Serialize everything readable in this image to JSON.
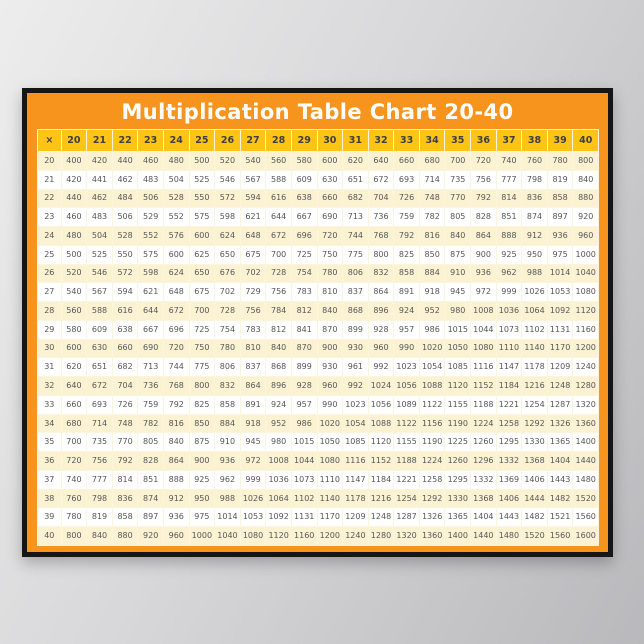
{
  "chart_data": {
    "type": "table",
    "title": "Multiplication Table Chart 20-40",
    "corner_label": "×",
    "columns": [
      20,
      21,
      22,
      23,
      24,
      25,
      26,
      27,
      28,
      29,
      30,
      31,
      32,
      33,
      34,
      35,
      36,
      37,
      38,
      39,
      40
    ],
    "rows": [
      {
        "label": 20,
        "values": [
          400,
          420,
          440,
          460,
          480,
          500,
          520,
          540,
          560,
          580,
          600,
          620,
          640,
          660,
          680,
          700,
          720,
          740,
          760,
          780,
          800
        ]
      },
      {
        "label": 21,
        "values": [
          420,
          441,
          462,
          483,
          504,
          525,
          546,
          567,
          588,
          609,
          630,
          651,
          672,
          693,
          714,
          735,
          756,
          777,
          798,
          819,
          840
        ]
      },
      {
        "label": 22,
        "values": [
          440,
          462,
          484,
          506,
          528,
          550,
          572,
          594,
          616,
          638,
          660,
          682,
          704,
          726,
          748,
          770,
          792,
          814,
          836,
          858,
          880
        ]
      },
      {
        "label": 23,
        "values": [
          460,
          483,
          506,
          529,
          552,
          575,
          598,
          621,
          644,
          667,
          690,
          713,
          736,
          759,
          782,
          805,
          828,
          851,
          874,
          897,
          920
        ]
      },
      {
        "label": 24,
        "values": [
          480,
          504,
          528,
          552,
          576,
          600,
          624,
          648,
          672,
          696,
          720,
          744,
          768,
          792,
          816,
          840,
          864,
          888,
          912,
          936,
          960
        ]
      },
      {
        "label": 25,
        "values": [
          500,
          525,
          550,
          575,
          600,
          625,
          650,
          675,
          700,
          725,
          750,
          775,
          800,
          825,
          850,
          875,
          900,
          925,
          950,
          975,
          1000
        ]
      },
      {
        "label": 26,
        "values": [
          520,
          546,
          572,
          598,
          624,
          650,
          676,
          702,
          728,
          754,
          780,
          806,
          832,
          858,
          884,
          910,
          936,
          962,
          988,
          1014,
          1040
        ]
      },
      {
        "label": 27,
        "values": [
          540,
          567,
          594,
          621,
          648,
          675,
          702,
          729,
          756,
          783,
          810,
          837,
          864,
          891,
          918,
          945,
          972,
          999,
          1026,
          1053,
          1080
        ]
      },
      {
        "label": 28,
        "values": [
          560,
          588,
          616,
          644,
          672,
          700,
          728,
          756,
          784,
          812,
          840,
          868,
          896,
          924,
          952,
          980,
          1008,
          1036,
          1064,
          1092,
          1120
        ]
      },
      {
        "label": 29,
        "values": [
          580,
          609,
          638,
          667,
          696,
          725,
          754,
          783,
          812,
          841,
          870,
          899,
          928,
          957,
          986,
          1015,
          1044,
          1073,
          1102,
          1131,
          1160
        ]
      },
      {
        "label": 30,
        "values": [
          600,
          630,
          660,
          690,
          720,
          750,
          780,
          810,
          840,
          870,
          900,
          930,
          960,
          990,
          1020,
          1050,
          1080,
          1110,
          1140,
          1170,
          1200
        ]
      },
      {
        "label": 31,
        "values": [
          620,
          651,
          682,
          713,
          744,
          775,
          806,
          837,
          868,
          899,
          930,
          961,
          992,
          1023,
          1054,
          1085,
          1116,
          1147,
          1178,
          1209,
          1240
        ]
      },
      {
        "label": 32,
        "values": [
          640,
          672,
          704,
          736,
          768,
          800,
          832,
          864,
          896,
          928,
          960,
          992,
          1024,
          1056,
          1088,
          1120,
          1152,
          1184,
          1216,
          1248,
          1280
        ]
      },
      {
        "label": 33,
        "values": [
          660,
          693,
          726,
          759,
          792,
          825,
          858,
          891,
          924,
          957,
          990,
          1023,
          1056,
          1089,
          1122,
          1155,
          1188,
          1221,
          1254,
          1287,
          1320
        ]
      },
      {
        "label": 34,
        "values": [
          680,
          714,
          748,
          782,
          816,
          850,
          884,
          918,
          952,
          986,
          1020,
          1054,
          1088,
          1122,
          1156,
          1190,
          1224,
          1258,
          1292,
          1326,
          1360
        ]
      },
      {
        "label": 35,
        "values": [
          700,
          735,
          770,
          805,
          840,
          875,
          910,
          945,
          980,
          1015,
          1050,
          1085,
          1120,
          1155,
          1190,
          1225,
          1260,
          1295,
          1330,
          1365,
          1400
        ]
      },
      {
        "label": 36,
        "values": [
          720,
          756,
          792,
          828,
          864,
          900,
          936,
          972,
          1008,
          1044,
          1080,
          1116,
          1152,
          1188,
          1224,
          1260,
          1296,
          1332,
          1368,
          1404,
          1440
        ]
      },
      {
        "label": 37,
        "values": [
          740,
          777,
          814,
          851,
          888,
          925,
          962,
          999,
          1036,
          1073,
          1110,
          1147,
          1184,
          1221,
          1258,
          1295,
          1332,
          1369,
          1406,
          1443,
          1480
        ]
      },
      {
        "label": 38,
        "values": [
          760,
          798,
          836,
          874,
          912,
          950,
          988,
          1026,
          1064,
          1102,
          1140,
          1178,
          1216,
          1254,
          1292,
          1330,
          1368,
          1406,
          1444,
          1482,
          1520
        ]
      },
      {
        "label": 39,
        "values": [
          780,
          819,
          858,
          897,
          936,
          975,
          1014,
          1053,
          1092,
          1131,
          1170,
          1209,
          1248,
          1287,
          1326,
          1365,
          1404,
          1443,
          1482,
          1521,
          1560
        ]
      },
      {
        "label": 40,
        "values": [
          800,
          840,
          880,
          920,
          960,
          1000,
          1040,
          1080,
          1120,
          1160,
          1200,
          1240,
          1280,
          1320,
          1360,
          1400,
          1440,
          1480,
          1520,
          1560,
          1600
        ]
      }
    ],
    "layout": {
      "header_position": "top-and-left",
      "row_striping": "even-rows-cream-odd-rows-white",
      "grid": "thin-light-gridlines"
    }
  },
  "colors": {
    "poster_orange": "#F7941E",
    "header_yellow": "#FFC417",
    "row_cream": "#FBF2D2",
    "row_white": "#FFFFFF",
    "header_text": "#3E3E40",
    "cell_text": "#55565A",
    "title_text": "#FFFFFF",
    "frame_black": "#161616",
    "wall_light": "#EDEDED",
    "wall_dark": "#B9B9BC"
  }
}
